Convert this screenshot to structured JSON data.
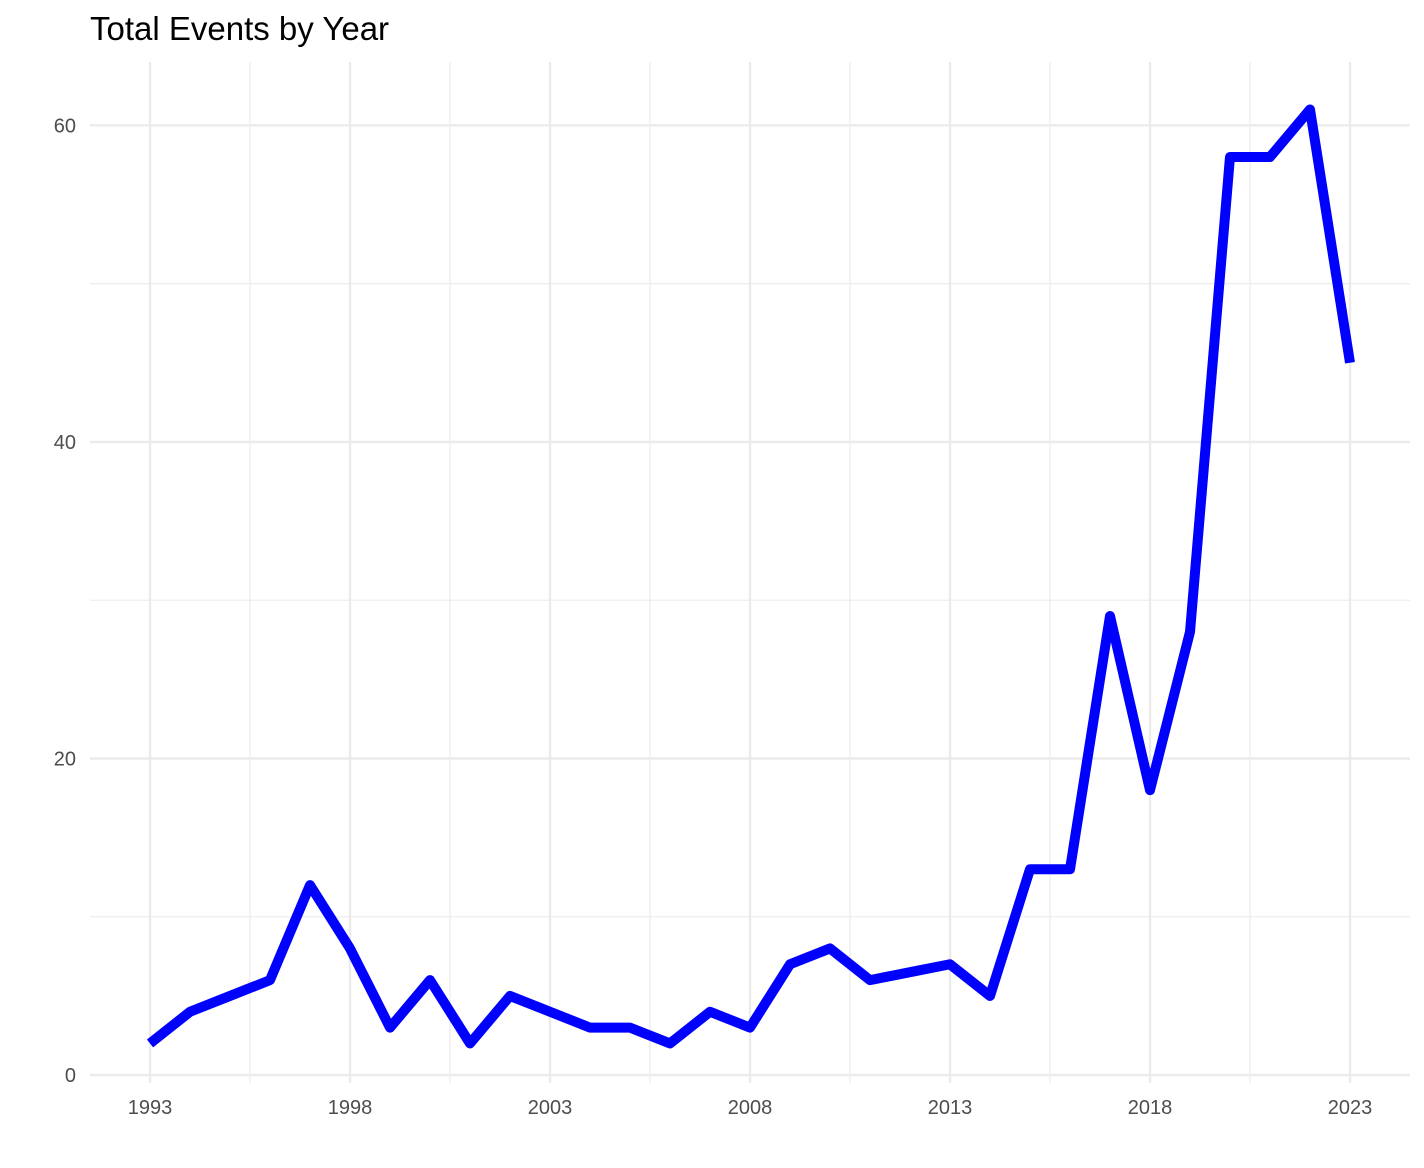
{
  "chart_data": {
    "type": "line",
    "title": "Total Events by Year",
    "xlabel": "",
    "ylabel": "",
    "x": [
      1993,
      1994,
      1995,
      1996,
      1997,
      1998,
      1999,
      2000,
      2001,
      2002,
      2003,
      2004,
      2005,
      2006,
      2007,
      2008,
      2009,
      2010,
      2011,
      2012,
      2013,
      2014,
      2015,
      2016,
      2017,
      2018,
      2019,
      2020,
      2021,
      2022,
      2023
    ],
    "series": [
      {
        "values": [
          2,
          4,
          5,
          6,
          12,
          8,
          3,
          6,
          2,
          5,
          4,
          3,
          3,
          2,
          4,
          3,
          7,
          8,
          6,
          6.5,
          7,
          5,
          13,
          13,
          29,
          18,
          28,
          58,
          58,
          61,
          45
        ],
        "color": "#0000ff"
      }
    ],
    "xlim": [
      1991.5,
      2024.5
    ],
    "ylim": [
      -0.5,
      64
    ],
    "x_ticks": [
      1993,
      1998,
      2003,
      2008,
      2013,
      2018,
      2023
    ],
    "y_ticks": [
      0,
      20,
      40,
      60
    ],
    "grid": true,
    "legend": "none"
  }
}
